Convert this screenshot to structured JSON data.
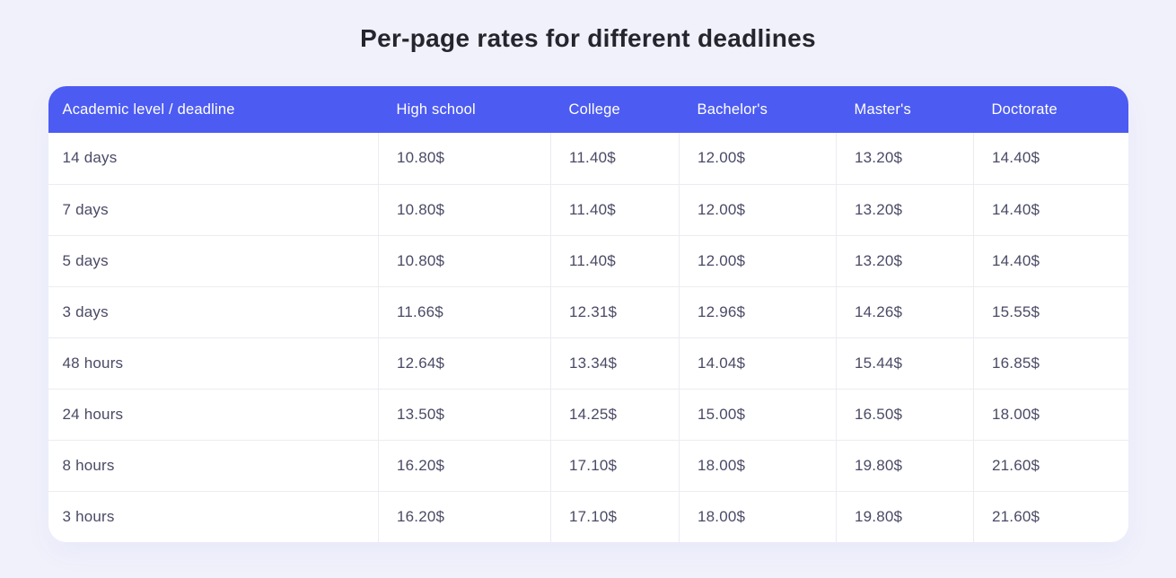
{
  "title": "Per-page rates for different deadlines",
  "colors": {
    "page_background": "#f1f1fb",
    "header_background": "#4c5bf2",
    "header_text": "#ffffff",
    "body_text": "#4a4a66",
    "title_text": "#25252e",
    "row_border": "#ebecf2",
    "card_background": "#ffffff"
  },
  "table": {
    "columns": [
      "Academic level / deadline",
      "High school",
      "College",
      "Bachelor's",
      "Master's",
      "Doctorate"
    ],
    "rows": [
      {
        "deadline": "14 days",
        "prices": [
          "10.80$",
          "11.40$",
          "12.00$",
          "13.20$",
          "14.40$"
        ]
      },
      {
        "deadline": "7 days",
        "prices": [
          "10.80$",
          "11.40$",
          "12.00$",
          "13.20$",
          "14.40$"
        ]
      },
      {
        "deadline": "5 days",
        "prices": [
          "10.80$",
          "11.40$",
          "12.00$",
          "13.20$",
          "14.40$"
        ]
      },
      {
        "deadline": "3 days",
        "prices": [
          "11.66$",
          "12.31$",
          "12.96$",
          "14.26$",
          "15.55$"
        ]
      },
      {
        "deadline": "48 hours",
        "prices": [
          "12.64$",
          "13.34$",
          "14.04$",
          "15.44$",
          "16.85$"
        ]
      },
      {
        "deadline": "24 hours",
        "prices": [
          "13.50$",
          "14.25$",
          "15.00$",
          "16.50$",
          "18.00$"
        ]
      },
      {
        "deadline": "8 hours",
        "prices": [
          "16.20$",
          "17.10$",
          "18.00$",
          "19.80$",
          "21.60$"
        ]
      },
      {
        "deadline": "3 hours",
        "prices": [
          "16.20$",
          "17.10$",
          "18.00$",
          "19.80$",
          "21.60$"
        ]
      }
    ]
  },
  "chart_data": {
    "type": "table",
    "title": "Per-page rates for different deadlines",
    "columns": [
      "Academic level / deadline",
      "High school",
      "College",
      "Bachelor's",
      "Master's",
      "Doctorate"
    ],
    "currency_suffix": "$",
    "rows": [
      [
        "14 days",
        10.8,
        11.4,
        12.0,
        13.2,
        14.4
      ],
      [
        "7 days",
        10.8,
        11.4,
        12.0,
        13.2,
        14.4
      ],
      [
        "5 days",
        10.8,
        11.4,
        12.0,
        13.2,
        14.4
      ],
      [
        "3 days",
        11.66,
        12.31,
        12.96,
        14.26,
        15.55
      ],
      [
        "48 hours",
        12.64,
        13.34,
        14.04,
        15.44,
        16.85
      ],
      [
        "24 hours",
        13.5,
        14.25,
        15.0,
        16.5,
        18.0
      ],
      [
        "8 hours",
        16.2,
        17.1,
        18.0,
        19.8,
        21.6
      ],
      [
        "3 hours",
        16.2,
        17.1,
        18.0,
        19.8,
        21.6
      ]
    ]
  }
}
